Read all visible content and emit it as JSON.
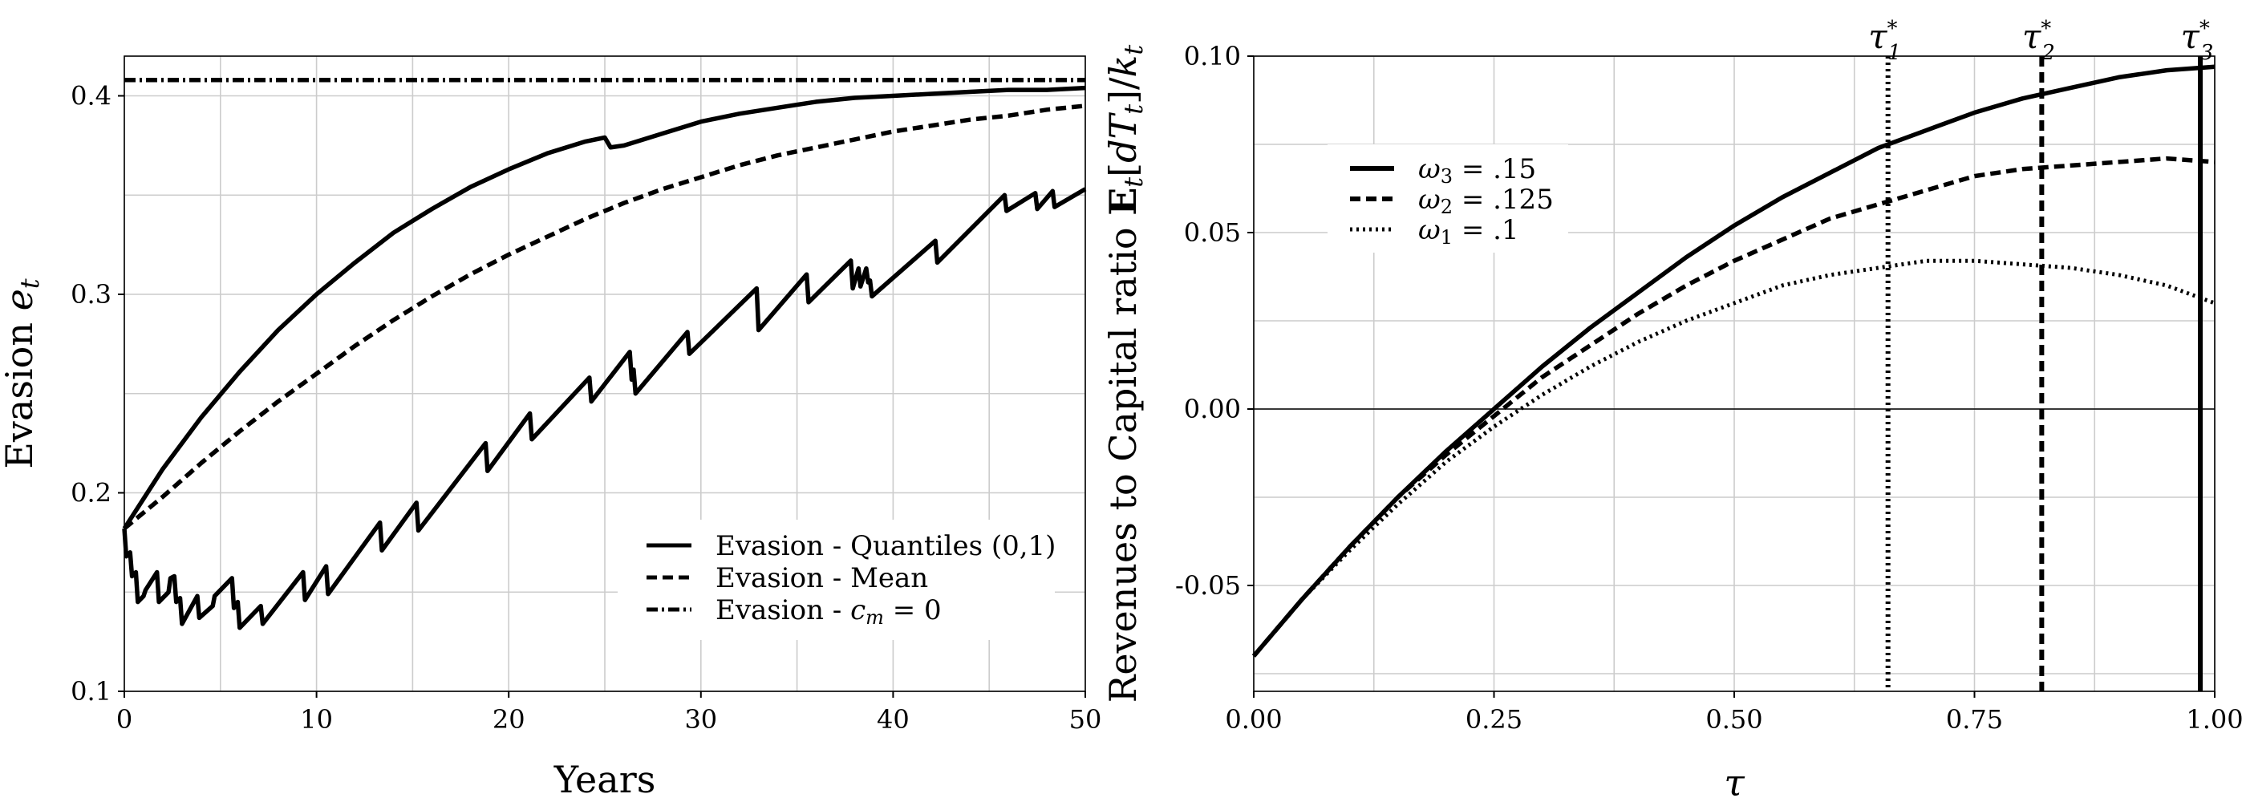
{
  "chart_data": [
    {
      "type": "line",
      "xlabel": "Years",
      "ylabel": "Evasion e_t",
      "xlim": [
        0,
        50
      ],
      "ylim": [
        0.1,
        0.42
      ],
      "xticks": [
        0,
        10,
        20,
        30,
        40,
        50
      ],
      "yticks": [
        0.1,
        0.2,
        0.3,
        0.4
      ],
      "xtick_labels": [
        "0",
        "10",
        "20",
        "30",
        "40",
        "50"
      ],
      "ytick_labels": [
        "0.1",
        "0.2",
        "0.3",
        "0.4"
      ],
      "grid": true,
      "legend": "bottom-right",
      "series": [
        {
          "name": "Evasion - Quantiles (0,1)",
          "style": "solid",
          "x": [
            0,
            2,
            4,
            6,
            8,
            10,
            12,
            14,
            16,
            18,
            20,
            22,
            24,
            25,
            25.3,
            26,
            28,
            30,
            32,
            34,
            36,
            38,
            40,
            42,
            44,
            46,
            48,
            50
          ],
          "y": [
            0.182,
            0.212,
            0.238,
            0.261,
            0.282,
            0.3,
            0.316,
            0.331,
            0.343,
            0.354,
            0.363,
            0.371,
            0.377,
            0.379,
            0.374,
            0.375,
            0.381,
            0.387,
            0.391,
            0.394,
            0.397,
            0.399,
            0.4,
            0.401,
            0.402,
            0.403,
            0.403,
            0.404
          ]
        },
        {
          "name": "Evasion - Mean",
          "style": "dashed",
          "x": [
            0,
            2,
            4,
            6,
            8,
            10,
            12,
            14,
            16,
            18,
            20,
            22,
            24,
            26,
            28,
            30,
            32,
            34,
            36,
            38,
            40,
            42,
            44,
            46,
            48,
            50
          ],
          "y": [
            0.182,
            0.198,
            0.215,
            0.231,
            0.246,
            0.26,
            0.274,
            0.287,
            0.299,
            0.31,
            0.32,
            0.329,
            0.338,
            0.346,
            0.353,
            0.359,
            0.365,
            0.37,
            0.374,
            0.378,
            0.382,
            0.385,
            0.388,
            0.39,
            0.393,
            0.395
          ]
        },
        {
          "name": "Evasion - c_m = 0",
          "style": "dashdot",
          "x": [
            0,
            50
          ],
          "y": [
            0.408,
            0.408
          ]
        },
        {
          "name": "",
          "style": "solid",
          "x": [
            0,
            0.1,
            0.3,
            0.4,
            0.6,
            0.7,
            1.0,
            1.1,
            1.7,
            1.8,
            2.3,
            2.4,
            2.6,
            2.7,
            2.9,
            3.0,
            3.8,
            3.9,
            4.6,
            4.7,
            5.6,
            5.7,
            5.9,
            6.0,
            7.1,
            7.2,
            9.3,
            9.4,
            10.5,
            10.6,
            13.3,
            13.4,
            15.2,
            15.3,
            18.8,
            18.9,
            21.1,
            21.2,
            24.2,
            24.3,
            26.3,
            26.4,
            26.5,
            26.6,
            29.3,
            29.4,
            32.9,
            33.0,
            35.5,
            35.6,
            37.8,
            37.9,
            38.2,
            38.3,
            38.6,
            38.7,
            38.8,
            38.9,
            42.2,
            42.3,
            45.8,
            45.9,
            47.4,
            47.5,
            48.3,
            48.4,
            50
          ],
          "y": [
            0.182,
            0.168,
            0.17,
            0.158,
            0.16,
            0.145,
            0.148,
            0.151,
            0.16,
            0.145,
            0.15,
            0.157,
            0.158,
            0.145,
            0.147,
            0.134,
            0.148,
            0.137,
            0.143,
            0.148,
            0.157,
            0.142,
            0.145,
            0.132,
            0.143,
            0.134,
            0.16,
            0.146,
            0.163,
            0.149,
            0.185,
            0.171,
            0.195,
            0.181,
            0.225,
            0.211,
            0.24,
            0.227,
            0.258,
            0.246,
            0.271,
            0.257,
            0.262,
            0.25,
            0.281,
            0.27,
            0.303,
            0.282,
            0.31,
            0.296,
            0.317,
            0.303,
            0.313,
            0.304,
            0.313,
            0.306,
            0.307,
            0.299,
            0.327,
            0.316,
            0.35,
            0.342,
            0.351,
            0.343,
            0.352,
            0.344,
            0.353
          ]
        }
      ]
    },
    {
      "type": "line",
      "xlabel": "τ",
      "ylabel": "Revenues to Capital ratio E_t[dT_t]/k_t",
      "xlim": [
        0.0,
        1.0
      ],
      "ylim": [
        -0.08,
        0.1
      ],
      "xticks": [
        0.0,
        0.25,
        0.5,
        0.75,
        1.0
      ],
      "yticks": [
        -0.05,
        0.0,
        0.05,
        0.1
      ],
      "xtick_labels": [
        "0.00",
        "0.25",
        "0.50",
        "0.75",
        "1.00"
      ],
      "ytick_labels": [
        "-0.05",
        "0.00",
        "0.05",
        "0.10"
      ],
      "grid": true,
      "legend": "top-left",
      "series": [
        {
          "name": "ω3 = .15",
          "style": "solid",
          "x": [
            0,
            0.05,
            0.1,
            0.15,
            0.2,
            0.25,
            0.3,
            0.35,
            0.4,
            0.45,
            0.5,
            0.55,
            0.6,
            0.65,
            0.7,
            0.75,
            0.8,
            0.85,
            0.9,
            0.95,
            1.0
          ],
          "y": [
            -0.07,
            -0.054,
            -0.039,
            -0.025,
            -0.012,
            0.0,
            0.012,
            0.023,
            0.033,
            0.043,
            0.052,
            0.06,
            0.067,
            0.074,
            0.079,
            0.084,
            0.088,
            0.091,
            0.094,
            0.096,
            0.097
          ]
        },
        {
          "name": "ω2 = .125",
          "style": "dashed",
          "x": [
            0,
            0.05,
            0.1,
            0.15,
            0.2,
            0.25,
            0.3,
            0.35,
            0.4,
            0.45,
            0.5,
            0.55,
            0.6,
            0.65,
            0.7,
            0.75,
            0.8,
            0.85,
            0.9,
            0.95,
            1.0
          ],
          "y": [
            -0.07,
            -0.054,
            -0.039,
            -0.025,
            -0.013,
            -0.002,
            0.009,
            0.018,
            0.027,
            0.035,
            0.042,
            0.048,
            0.054,
            0.058,
            0.062,
            0.066,
            0.068,
            0.069,
            0.07,
            0.071,
            0.07
          ]
        },
        {
          "name": "ω1 = .1",
          "style": "dotted",
          "x": [
            0,
            0.05,
            0.1,
            0.15,
            0.2,
            0.25,
            0.3,
            0.35,
            0.4,
            0.45,
            0.5,
            0.55,
            0.6,
            0.65,
            0.7,
            0.75,
            0.8,
            0.85,
            0.9,
            0.95,
            1.0
          ],
          "y": [
            -0.07,
            -0.054,
            -0.04,
            -0.027,
            -0.015,
            -0.005,
            0.004,
            0.012,
            0.019,
            0.025,
            0.03,
            0.035,
            0.038,
            0.04,
            0.042,
            0.042,
            0.041,
            0.04,
            0.038,
            0.035,
            0.03
          ]
        }
      ],
      "vlines": [
        {
          "x": 0.66,
          "label": "τ1*",
          "style": "dotted"
        },
        {
          "x": 0.82,
          "label": "τ2*",
          "style": "dashed"
        },
        {
          "x": 0.985,
          "label": "τ3*",
          "style": "solid"
        }
      ]
    }
  ]
}
